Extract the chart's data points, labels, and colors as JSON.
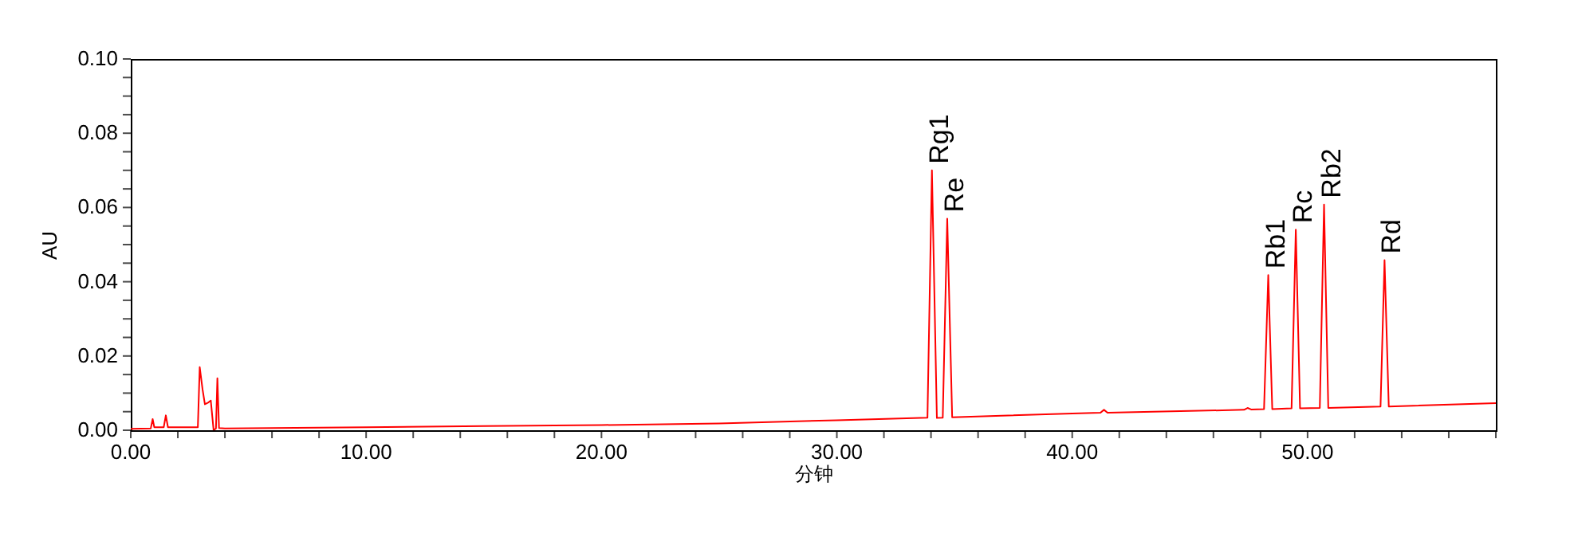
{
  "chart_data": {
    "type": "line",
    "xlabel": "分钟",
    "ylabel": "AU",
    "xlim": [
      0,
      58
    ],
    "ylim": [
      0,
      0.1
    ],
    "xticks": [
      {
        "value": 0,
        "label": "0.00"
      },
      {
        "value": 2,
        "label": null
      },
      {
        "value": 4,
        "label": null
      },
      {
        "value": 6,
        "label": null
      },
      {
        "value": 8,
        "label": null
      },
      {
        "value": 10,
        "label": "10.00"
      },
      {
        "value": 12,
        "label": null
      },
      {
        "value": 14,
        "label": null
      },
      {
        "value": 16,
        "label": null
      },
      {
        "value": 18,
        "label": null
      },
      {
        "value": 20,
        "label": "20.00"
      },
      {
        "value": 22,
        "label": null
      },
      {
        "value": 24,
        "label": null
      },
      {
        "value": 26,
        "label": null
      },
      {
        "value": 28,
        "label": null
      },
      {
        "value": 30,
        "label": "30.00"
      },
      {
        "value": 32,
        "label": null
      },
      {
        "value": 34,
        "label": null
      },
      {
        "value": 36,
        "label": null
      },
      {
        "value": 38,
        "label": null
      },
      {
        "value": 40,
        "label": "40.00"
      },
      {
        "value": 42,
        "label": null
      },
      {
        "value": 44,
        "label": null
      },
      {
        "value": 46,
        "label": null
      },
      {
        "value": 48,
        "label": null
      },
      {
        "value": 50,
        "label": "50.00"
      },
      {
        "value": 52,
        "label": null
      },
      {
        "value": 54,
        "label": null
      },
      {
        "value": 56,
        "label": null
      },
      {
        "value": 58,
        "label": null
      }
    ],
    "yticks": [
      {
        "value": 0,
        "label": "0.00"
      },
      {
        "value": 0.005,
        "label": null
      },
      {
        "value": 0.01,
        "label": null
      },
      {
        "value": 0.015,
        "label": null
      },
      {
        "value": 0.02,
        "label": "0.02"
      },
      {
        "value": 0.025,
        "label": null
      },
      {
        "value": 0.03,
        "label": null
      },
      {
        "value": 0.035,
        "label": null
      },
      {
        "value": 0.04,
        "label": "0.04"
      },
      {
        "value": 0.045,
        "label": null
      },
      {
        "value": 0.05,
        "label": null
      },
      {
        "value": 0.055,
        "label": null
      },
      {
        "value": 0.06,
        "label": "0.06"
      },
      {
        "value": 0.065,
        "label": null
      },
      {
        "value": 0.07,
        "label": null
      },
      {
        "value": 0.075,
        "label": null
      },
      {
        "value": 0.08,
        "label": "0.08"
      },
      {
        "value": 0.085,
        "label": null
      },
      {
        "value": 0.09,
        "label": null
      },
      {
        "value": 0.095,
        "label": null
      },
      {
        "value": 0.1,
        "label": "0.10"
      }
    ],
    "grid": false,
    "series": [
      {
        "color": "#ff0000",
        "x": [
          0,
          0.85,
          0.93,
          1.0,
          1.4,
          1.49,
          1.58,
          2.85,
          2.93,
          3.05,
          3.15,
          3.3,
          3.4,
          3.52,
          3.62,
          3.68,
          3.75,
          4.0,
          6.0,
          10,
          15,
          20,
          25,
          30,
          33.85,
          34.04,
          34.25,
          34.5,
          34.69,
          34.9,
          40,
          41.2,
          41.35,
          41.5,
          47.3,
          47.45,
          47.6,
          48.15,
          48.33,
          48.5,
          49.32,
          49.5,
          49.68,
          50.52,
          50.7,
          50.88,
          53.1,
          53.27,
          53.45,
          58
        ],
        "values": [
          0.0004,
          0.0005,
          0.003,
          0.0008,
          0.0008,
          0.004,
          0.0008,
          0.0008,
          0.017,
          0.011,
          0.007,
          0.0075,
          0.008,
          0.0,
          0.0005,
          0.014,
          0.0006,
          0.0005,
          0.0006,
          0.0008,
          0.0011,
          0.0014,
          0.0018,
          0.0027,
          0.0034,
          0.07,
          0.0033,
          0.0034,
          0.057,
          0.0035,
          0.0045,
          0.0047,
          0.0055,
          0.0047,
          0.0055,
          0.006,
          0.0056,
          0.0057,
          0.0418,
          0.0057,
          0.0059,
          0.054,
          0.0059,
          0.006,
          0.0608,
          0.006,
          0.0064,
          0.0458,
          0.0064,
          0.0073
        ]
      }
    ],
    "annotations": [
      {
        "text": "Rg1",
        "x": 34.04,
        "y": 0.07
      },
      {
        "text": "Re",
        "x": 34.69,
        "y": 0.057
      },
      {
        "text": "Rb1",
        "x": 48.33,
        "y": 0.0418
      },
      {
        "text": "Rc",
        "x": 49.5,
        "y": 0.054
      },
      {
        "text": "Rb2",
        "x": 50.7,
        "y": 0.0608
      },
      {
        "text": "Rd",
        "x": 53.27,
        "y": 0.0458
      }
    ]
  }
}
